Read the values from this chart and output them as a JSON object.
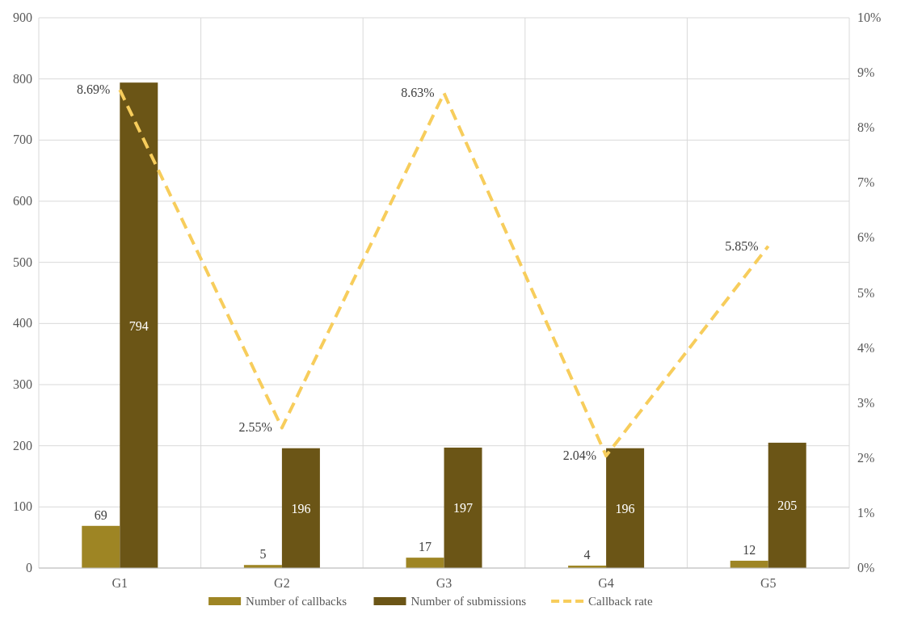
{
  "chart_data": {
    "type": "bar",
    "categories": [
      "G1",
      "G2",
      "G3",
      "G4",
      "G5"
    ],
    "series": [
      {
        "name": "Number of callbacks",
        "color": "#9e8524",
        "values": [
          69,
          5,
          17,
          4,
          12
        ],
        "value_labels": [
          "69",
          "5",
          "17",
          "4",
          "12"
        ]
      },
      {
        "name": "Number of submissions",
        "color": "#6b5516",
        "values": [
          794,
          196,
          197,
          196,
          205
        ],
        "value_labels": [
          "794",
          "196",
          "197",
          "196",
          "205"
        ]
      },
      {
        "name": "Callback rate",
        "type": "line",
        "axis": "y2",
        "color": "#f7cd5c",
        "line_style": "dashed",
        "marker": "none",
        "values": [
          8.69,
          2.55,
          8.63,
          2.04,
          5.85
        ],
        "value_labels": [
          "8.69%",
          "2.55%",
          "8.63%",
          "2.04%",
          "5.85%"
        ]
      }
    ],
    "ylim": [
      0,
      900
    ],
    "yticks": [
      0,
      100,
      200,
      300,
      400,
      500,
      600,
      700,
      800,
      900
    ],
    "y2lim": [
      0,
      10
    ],
    "y2ticks": [
      {
        "value": 0,
        "label": "0%"
      },
      {
        "value": 1,
        "label": "1%"
      },
      {
        "value": 2,
        "label": "2%"
      },
      {
        "value": 3,
        "label": "3%"
      },
      {
        "value": 4,
        "label": "4%"
      },
      {
        "value": 5,
        "label": "5%"
      },
      {
        "value": 6,
        "label": "6%"
      },
      {
        "value": 7,
        "label": "7%"
      },
      {
        "value": 8,
        "label": "8%"
      },
      {
        "value": 9,
        "label": "9%"
      },
      {
        "value": 10,
        "label": "10%"
      }
    ],
    "grid": true,
    "legend": "bottom"
  }
}
